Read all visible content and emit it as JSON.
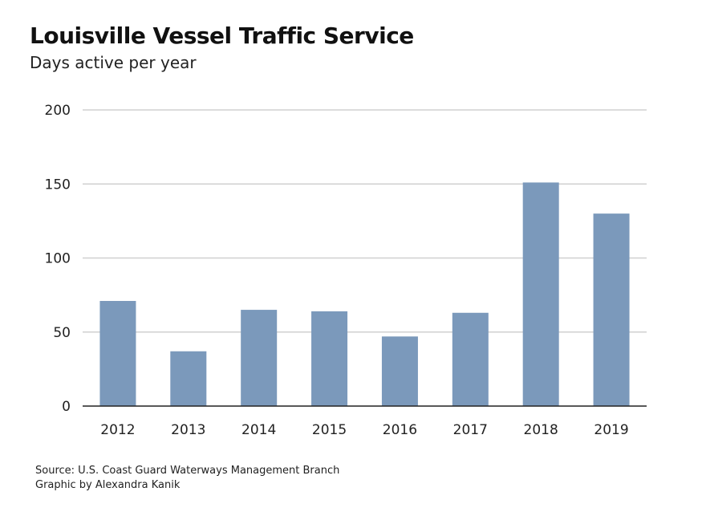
{
  "chart_data": {
    "type": "bar",
    "title": "Louisville Vessel Traffic Service",
    "subtitle": "Days active per year",
    "categories": [
      "2012",
      "2013",
      "2014",
      "2015",
      "2016",
      "2017",
      "2018",
      "2019"
    ],
    "values": [
      71,
      37,
      65,
      64,
      47,
      63,
      151,
      130
    ],
    "ylim": [
      0,
      200
    ],
    "yticks": [
      0,
      50,
      100,
      150,
      200
    ],
    "grid": true,
    "bar_color": "#7b99bb",
    "xlabel": "",
    "ylabel": ""
  },
  "footer": {
    "source": "Source: U.S. Coast Guard Waterways Management Branch",
    "credit": "Graphic by Alexandra Kanik"
  }
}
